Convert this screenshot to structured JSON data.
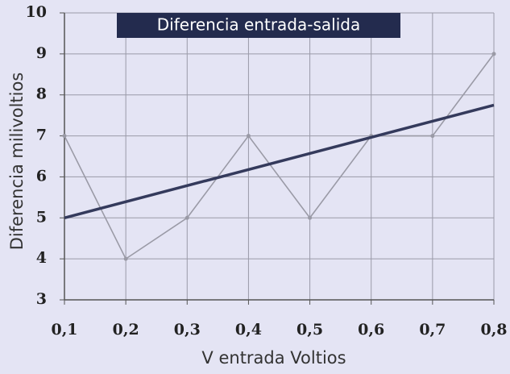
{
  "chart_data": {
    "type": "line",
    "title": "Diferencia entrada-salida",
    "x_label": "V entrada Voltios",
    "y_label": "Diferencia milivoltios",
    "series": [
      {
        "color": "#9a9aa6",
        "x": [
          0.1,
          0.2,
          0.3,
          0.4,
          0.5,
          0.6,
          0.7,
          0.8
        ],
        "values": [
          7,
          4,
          5,
          7,
          5,
          7,
          7,
          9
        ],
        "markers": true
      },
      {
        "color": "#343a5c",
        "x": [
          0.1,
          0.8
        ],
        "values": [
          5,
          7.75
        ],
        "markers": false
      }
    ],
    "xlim": [
      0.1,
      0.8
    ],
    "xticks": [
      {
        "value": 0.1,
        "label": "0,1"
      },
      {
        "value": 0.2,
        "label": "0,2"
      },
      {
        "value": 0.3,
        "label": "0,3"
      },
      {
        "value": 0.4,
        "label": "0,4"
      },
      {
        "value": 0.5,
        "label": "0,5"
      },
      {
        "value": 0.6,
        "label": "0,6"
      },
      {
        "value": 0.7,
        "label": "0,7"
      },
      {
        "value": 0.8,
        "label": "0,8"
      }
    ],
    "ylim": [
      3,
      10
    ],
    "yticks": [
      3,
      4,
      5,
      6,
      7,
      8,
      9,
      10
    ],
    "grid": true
  }
}
